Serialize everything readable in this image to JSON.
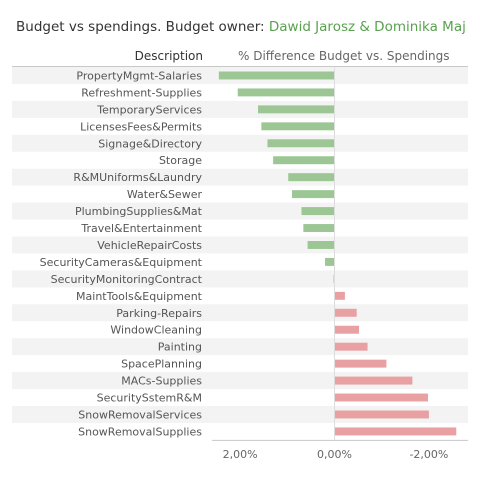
{
  "header": {
    "title_prefix": "Budget vs spendings. Budget owner: ",
    "owner": "Dawid Jarosz & Dominika Maj",
    "col_description": "Description",
    "col_metric": "% Difference Budget vs. Spendings"
  },
  "colors": {
    "positive": "#9cc694",
    "negative": "#e8a0a2",
    "row_band": "#f3f3f3",
    "owner": "#59a14f"
  },
  "chart_data": {
    "type": "bar",
    "orientation": "horizontal",
    "title": "Budget vs spendings. Budget owner: Dawid Jarosz & Dominika Maj",
    "ylabel": "Description",
    "xlabel": "% Difference Budget vs. Spendings",
    "x_reversed": true,
    "xlim": [
      -2.7,
      2.43
    ],
    "x_ticks": [
      2.0,
      0.0,
      -2.0
    ],
    "x_tick_labels": [
      "2,00%",
      "0,00%",
      "-2,00%"
    ],
    "categories": [
      "PropertyMgmt-Salaries",
      "Refreshment-Supplies",
      "TemporaryServices",
      "LicensesFees&Permits",
      "Signage&Directory",
      "Storage",
      "R&MUniforms&Laundry",
      "Water&Sewer",
      "PlumbingSupplies&Mat",
      "Travel&Entertainment",
      "VehicleRepairCosts",
      "SecurityCameras&Equipment",
      "SecurityMonitoringContract",
      "MaintTools&Equipment",
      "Parking-Repairs",
      "WindowCleaning",
      "Painting",
      "SpacePlanning",
      "MACs-Supplies",
      "SecuritySstemR&M",
      "SnowRemovalServices",
      "SnowRemovalSupplies"
    ],
    "values": [
      2.45,
      2.05,
      1.62,
      1.55,
      1.42,
      1.3,
      0.98,
      0.9,
      0.7,
      0.66,
      0.57,
      0.2,
      0.02,
      -0.22,
      -0.47,
      -0.52,
      -0.7,
      -1.1,
      -1.65,
      -1.98,
      -2.0,
      -2.58
    ],
    "grid": false,
    "legend": "none"
  }
}
